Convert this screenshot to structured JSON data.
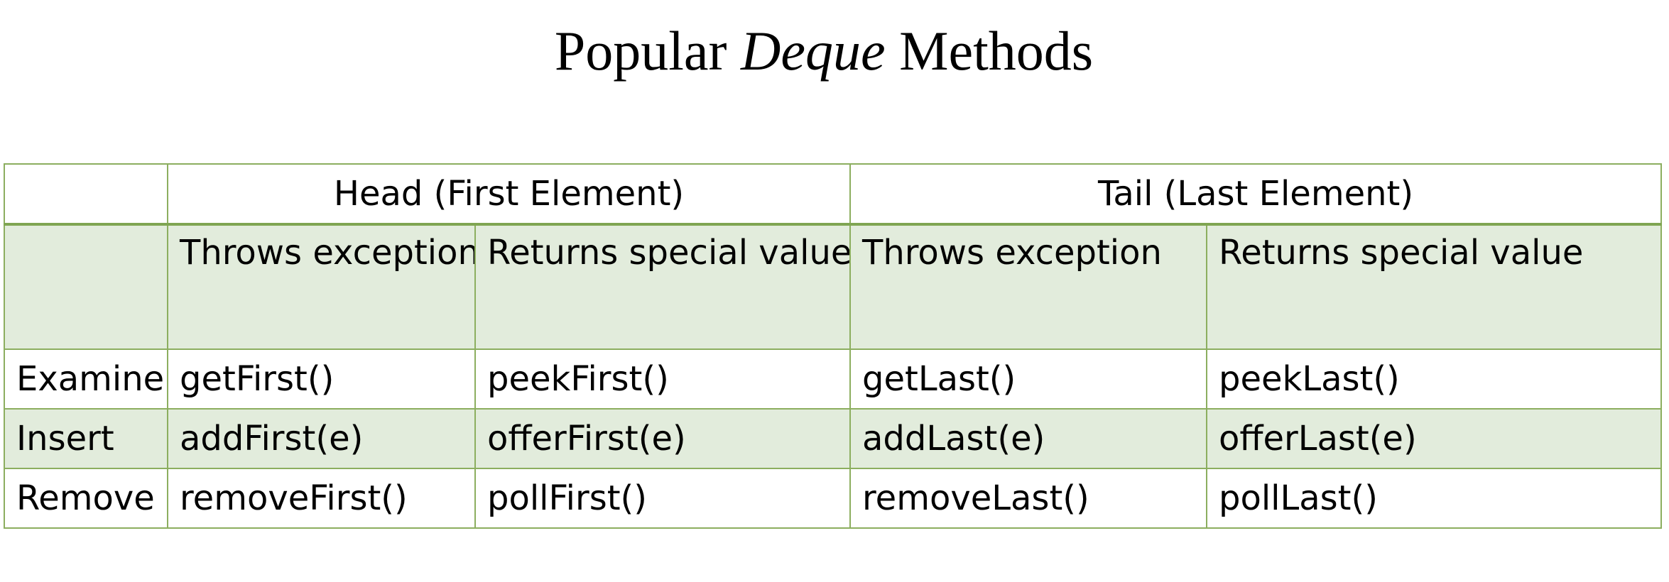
{
  "title": {
    "prefix": "Popular ",
    "emphasis": "Deque",
    "suffix": " Methods"
  },
  "table": {
    "groups": [
      "Head (First Element)",
      "Tail (Last Element)"
    ],
    "subheaders": [
      "Throws exception",
      "Returns special value",
      "Throws exception",
      "Returns special value"
    ],
    "rows": [
      {
        "label": "Examine",
        "cells": [
          "getFirst()",
          "peekFirst()",
          "getLast()",
          "peekLast()"
        ]
      },
      {
        "label": "Insert",
        "cells": [
          "addFirst(e)",
          "offerFirst(e)",
          "addLast(e)",
          "offerLast(e)"
        ]
      },
      {
        "label": "Remove",
        "cells": [
          "removeFirst()",
          "pollFirst()",
          "removeLast()",
          "pollLast()"
        ]
      }
    ]
  },
  "colors": {
    "border": "#8cae5f",
    "shade": "#e2ecdc"
  }
}
